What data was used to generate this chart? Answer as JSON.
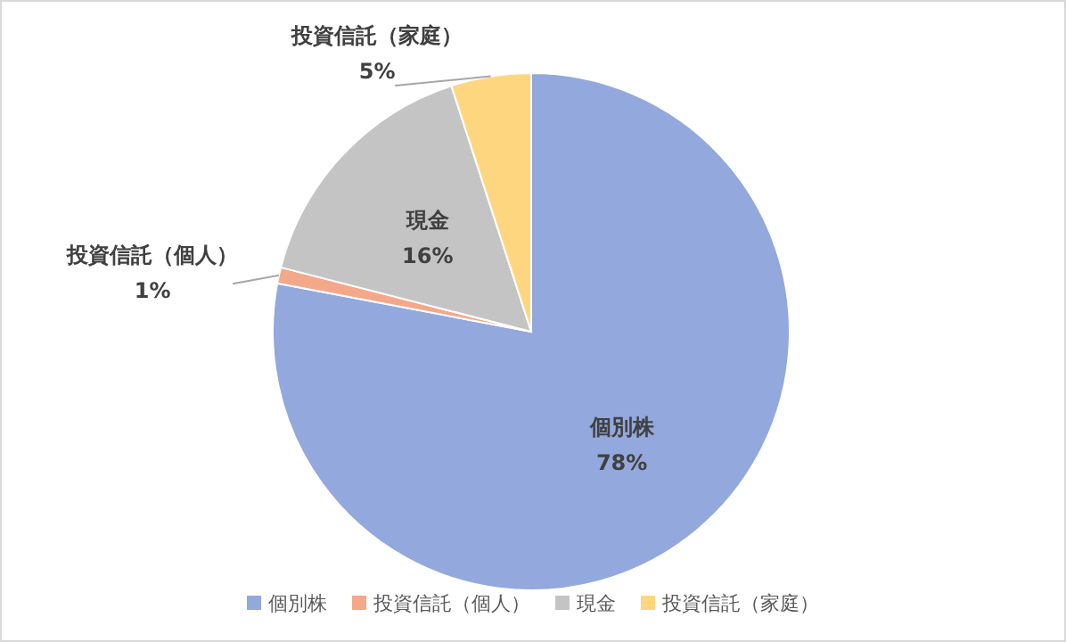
{
  "chart_data": {
    "type": "pie",
    "categories": [
      "個別株",
      "投資信託（個人）",
      "現金",
      "投資信託（家庭）"
    ],
    "values": [
      78,
      1,
      16,
      5
    ],
    "colors": [
      "#93a8dc",
      "#f4a88a",
      "#c4c4c4",
      "#ffd680"
    ],
    "value_labels": [
      "78%",
      "1%",
      "16%",
      "5%"
    ],
    "legend": "bottom"
  }
}
